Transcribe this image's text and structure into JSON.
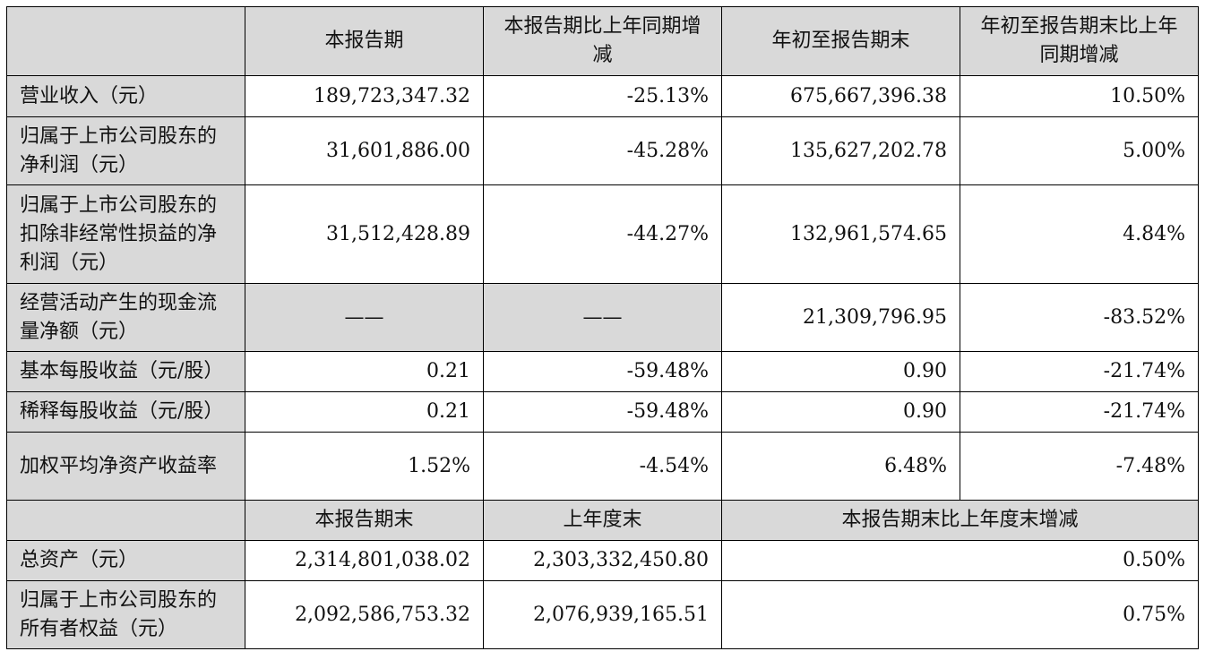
{
  "header": {
    "col1": "",
    "col2": "本报告期",
    "col3": "本报告期比上年同期增减",
    "col4": "年初至报告期末",
    "col5": "年初至报告期末比上年同期增减"
  },
  "rows": [
    {
      "label": "营业收入（元）",
      "v1": "189,723,347.32",
      "v2": "-25.13%",
      "v3": "675,667,396.38",
      "v4": "10.50%"
    },
    {
      "label": "归属于上市公司股东的净利润（元）",
      "v1": "31,601,886.00",
      "v2": "-45.28%",
      "v3": "135,627,202.78",
      "v4": "5.00%"
    },
    {
      "label": "归属于上市公司股东的扣除非经常性损益的净利润（元）",
      "v1": "31,512,428.89",
      "v2": "-44.27%",
      "v3": "132,961,574.65",
      "v4": "4.84%"
    },
    {
      "label": "经营活动产生的现金流量净额（元）",
      "v1": "——",
      "v2": "——",
      "v3": "21,309,796.95",
      "v4": "-83.52%"
    },
    {
      "label": "基本每股收益（元/股）",
      "v1": "0.21",
      "v2": "-59.48%",
      "v3": "0.90",
      "v4": "-21.74%"
    },
    {
      "label": "稀释每股收益（元/股）",
      "v1": "0.21",
      "v2": "-59.48%",
      "v3": "0.90",
      "v4": "-21.74%"
    },
    {
      "label": "加权平均净资产收益率",
      "v1": "1.52%",
      "v2": "-4.54%",
      "v3": "6.48%",
      "v4": "-7.48%"
    }
  ],
  "header2": {
    "col1": "",
    "col2": "本报告期末",
    "col3": "上年度末",
    "col4": "本报告期末比上年度末增减"
  },
  "rows2": [
    {
      "label": "总资产（元）",
      "v1": "2,314,801,038.02",
      "v2": "2,303,332,450.80",
      "v3": "0.50%"
    },
    {
      "label": "归属于上市公司股东的所有者权益（元）",
      "v1": "2,092,586,753.32",
      "v2": "2,076,939,165.51",
      "v3": "0.75%"
    }
  ]
}
